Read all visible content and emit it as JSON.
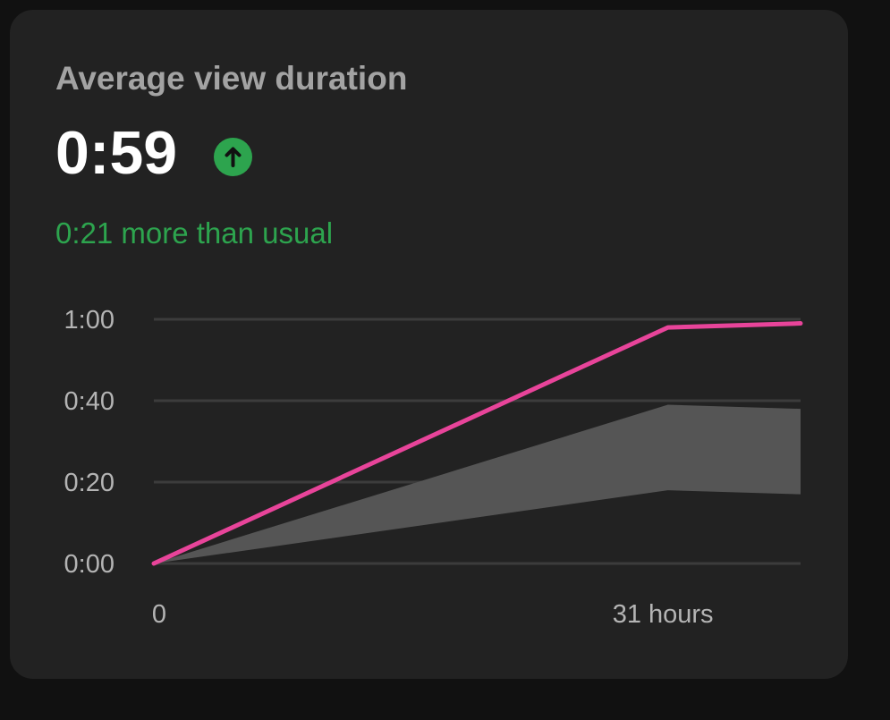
{
  "card": {
    "title": "Average view duration",
    "value": "0:59",
    "trend_icon": "arrow-up-circle-icon",
    "comparison": "0:21 more than usual"
  },
  "colors": {
    "background": "#111111",
    "card": "#222222",
    "positive": "#2da44e",
    "series_line": "#e8449a",
    "typical_range": "#555555",
    "grid": "#3c3c3c"
  },
  "chart_data": {
    "type": "line",
    "title": "",
    "xlabel": "",
    "ylabel": "",
    "x_unit": "hours",
    "x_ticks": [
      {
        "x": 0,
        "label": "0"
      },
      {
        "x": 31,
        "label": "31 hours"
      }
    ],
    "y_ticks": [
      {
        "y": 0,
        "label": "0:00"
      },
      {
        "y": 20,
        "label": "0:20"
      },
      {
        "y": 40,
        "label": "0:40"
      },
      {
        "y": 60,
        "label": "1:00"
      }
    ],
    "xlim": [
      0,
      39
    ],
    "ylim": [
      0,
      60
    ],
    "y_unit": "seconds",
    "grid": true,
    "series": [
      {
        "color": "#e8449a",
        "points": [
          [
            0,
            0
          ],
          [
            31,
            58
          ],
          [
            39,
            59
          ]
        ]
      }
    ],
    "band": {
      "color": "#555555",
      "upper": [
        [
          0,
          0
        ],
        [
          31,
          39
        ],
        [
          39,
          38
        ]
      ],
      "lower": [
        [
          0,
          0
        ],
        [
          31,
          18
        ],
        [
          39,
          17
        ]
      ]
    }
  }
}
